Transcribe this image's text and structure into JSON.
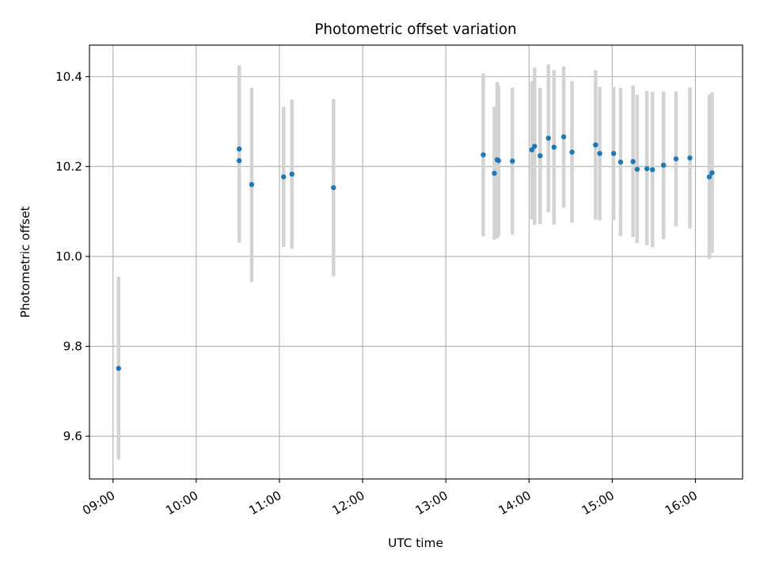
{
  "chart_data": {
    "type": "scatter",
    "title": "Photometric offset variation",
    "xlabel": "UTC time",
    "ylabel": "Photometric offset",
    "xlim": [
      "08:43",
      "16:34"
    ],
    "ylim": [
      9.505,
      10.47
    ],
    "grid": true,
    "x_ticks": [
      "09:00",
      "10:00",
      "11:00",
      "12:00",
      "13:00",
      "14:00",
      "15:00",
      "16:00"
    ],
    "y_ticks": [
      9.6,
      9.8,
      10.0,
      10.2,
      10.4
    ],
    "y_tick_labels": [
      "9.6",
      "9.8",
      "10.0",
      "10.2",
      "10.4"
    ],
    "colors": {
      "point": "#1f77b4",
      "errorbar": "#d3d3d3",
      "grid": "#b0b0b0"
    },
    "series": [
      {
        "values": [
          {
            "x": "09:04",
            "y": 9.751,
            "lo": 9.548,
            "hi": 9.955
          },
          {
            "x": "10:31",
            "y": 10.239,
            "lo": 10.052,
            "hi": 10.425
          },
          {
            "x": "10:31",
            "y": 10.213,
            "lo": 10.03,
            "hi": 10.398
          },
          {
            "x": "10:40",
            "y": 10.16,
            "lo": 9.943,
            "hi": 10.375
          },
          {
            "x": "11:03",
            "y": 10.177,
            "lo": 10.021,
            "hi": 10.333
          },
          {
            "x": "11:09",
            "y": 10.183,
            "lo": 10.017,
            "hi": 10.349
          },
          {
            "x": "11:39",
            "y": 10.153,
            "lo": 9.956,
            "hi": 10.35
          },
          {
            "x": "13:27",
            "y": 10.226,
            "lo": 10.045,
            "hi": 10.407
          },
          {
            "x": "13:35",
            "y": 10.185,
            "lo": 10.037,
            "hi": 10.333
          },
          {
            "x": "13:37",
            "y": 10.215,
            "lo": 10.04,
            "hi": 10.388
          },
          {
            "x": "13:38",
            "y": 10.213,
            "lo": 10.045,
            "hi": 10.38
          },
          {
            "x": "13:48",
            "y": 10.212,
            "lo": 10.048,
            "hi": 10.375
          },
          {
            "x": "14:02",
            "y": 10.237,
            "lo": 10.082,
            "hi": 10.39
          },
          {
            "x": "14:04",
            "y": 10.245,
            "lo": 10.07,
            "hi": 10.42
          },
          {
            "x": "14:08",
            "y": 10.224,
            "lo": 10.072,
            "hi": 10.375
          },
          {
            "x": "14:14",
            "y": 10.263,
            "lo": 10.098,
            "hi": 10.427
          },
          {
            "x": "14:18",
            "y": 10.243,
            "lo": 10.071,
            "hi": 10.415
          },
          {
            "x": "14:25",
            "y": 10.266,
            "lo": 10.108,
            "hi": 10.423
          },
          {
            "x": "14:31",
            "y": 10.232,
            "lo": 10.075,
            "hi": 10.39
          },
          {
            "x": "14:48",
            "y": 10.248,
            "lo": 10.082,
            "hi": 10.414
          },
          {
            "x": "14:51",
            "y": 10.229,
            "lo": 10.08,
            "hi": 10.377
          },
          {
            "x": "15:01",
            "y": 10.229,
            "lo": 10.081,
            "hi": 10.377
          },
          {
            "x": "15:06",
            "y": 10.21,
            "lo": 10.045,
            "hi": 10.375
          },
          {
            "x": "15:15",
            "y": 10.211,
            "lo": 10.043,
            "hi": 10.38
          },
          {
            "x": "15:18",
            "y": 10.194,
            "lo": 10.03,
            "hi": 10.36
          },
          {
            "x": "15:25",
            "y": 10.195,
            "lo": 10.025,
            "hi": 10.368
          },
          {
            "x": "15:29",
            "y": 10.193,
            "lo": 10.02,
            "hi": 10.366
          },
          {
            "x": "15:37",
            "y": 10.203,
            "lo": 10.038,
            "hi": 10.367
          },
          {
            "x": "15:46",
            "y": 10.217,
            "lo": 10.067,
            "hi": 10.367
          },
          {
            "x": "15:56",
            "y": 10.219,
            "lo": 10.062,
            "hi": 10.376
          },
          {
            "x": "16:10",
            "y": 10.177,
            "lo": 9.994,
            "hi": 10.36
          },
          {
            "x": "16:12",
            "y": 10.186,
            "lo": 10.008,
            "hi": 10.365
          }
        ]
      }
    ]
  }
}
